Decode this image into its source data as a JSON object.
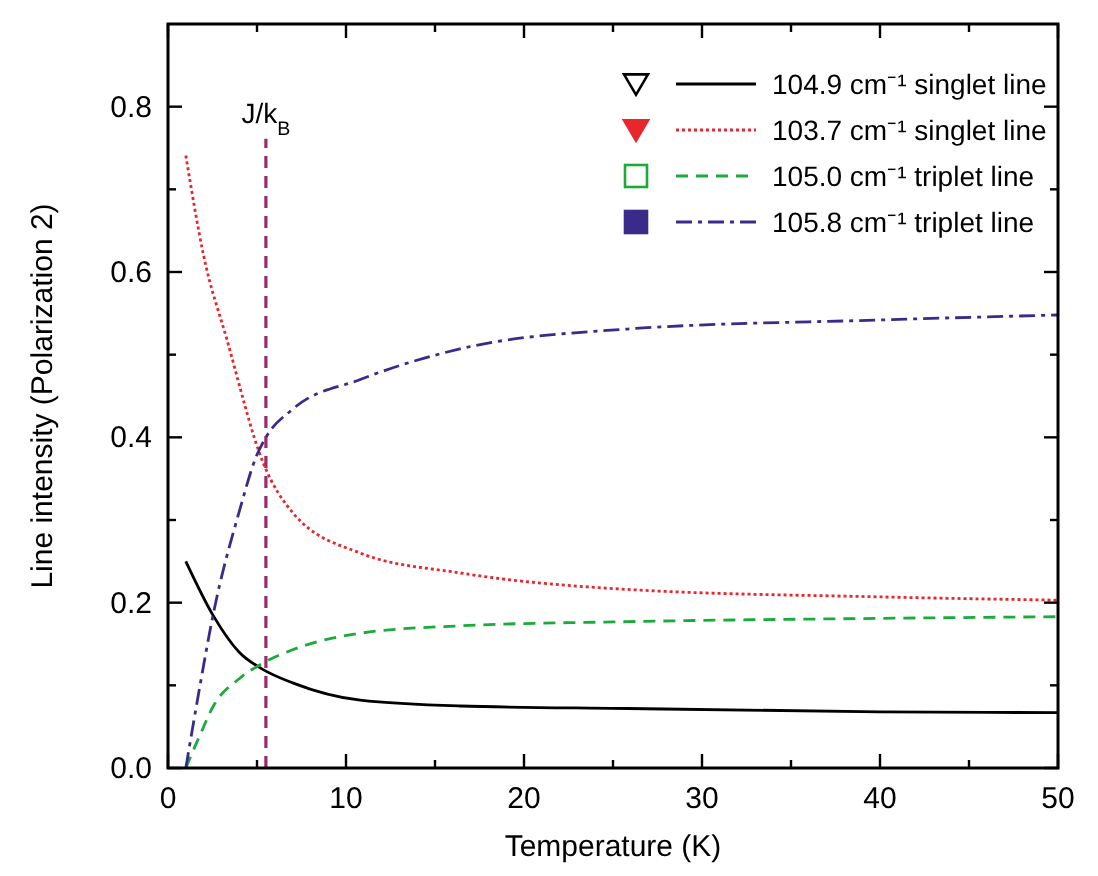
{
  "chart_data": {
    "type": "line",
    "xlabel": "Temperature (K)",
    "ylabel": "Line intensity (Polarization 2)",
    "xlim": [
      0,
      50
    ],
    "ylim": [
      0,
      0.9
    ],
    "xticks": [
      0,
      {
        "value": 5,
        "label": null
      },
      10,
      {
        "value": 15,
        "label": null
      },
      20,
      {
        "value": 25,
        "label": null
      },
      30,
      {
        "value": 35,
        "label": null
      },
      40,
      {
        "value": 45,
        "label": null
      },
      50
    ],
    "yticks": [
      "0.0",
      {
        "value": 0.1,
        "label": null
      },
      0.2,
      {
        "value": 0.3,
        "label": null
      },
      0.4,
      {
        "value": 0.5,
        "label": null
      },
      0.6,
      {
        "value": 0.7,
        "label": null
      },
      0.8
    ],
    "grid": false,
    "legend": "top right",
    "ref_lines": [
      {
        "axis": "x",
        "value": 5.5,
        "label": "J/k$_{B}$",
        "color": "#9b2a6a",
        "line_style": "dashed"
      }
    ],
    "series": [
      {
        "name": "104.9 cm⁻¹ singlet line",
        "color": "#000000",
        "line_style": "solid",
        "x": [
          1,
          2.55,
          4,
          5.35,
          7,
          10.8,
          16.4,
          25.8,
          40,
          50
        ],
        "values": [
          0.25,
          0.184,
          0.14,
          0.119,
          0.103,
          0.082,
          0.075,
          0.072,
          0.068,
          0.067
        ]
      },
      {
        "name": "103.7 cm⁻¹ singlet line",
        "color": "#e8262b",
        "line_style": "dotted",
        "x": [
          1,
          2,
          3.3,
          5.35,
          7,
          10.8,
          16.4,
          25.8,
          40,
          50
        ],
        "values": [
          0.741,
          0.62,
          0.519,
          0.369,
          0.309,
          0.26,
          0.236,
          0.216,
          0.207,
          0.203
        ]
      },
      {
        "name": "105.0 cm⁻¹ triplet line",
        "color": "#1aab3a",
        "line_style": "dashed",
        "x": [
          1,
          1.8,
          2.55,
          4,
          5.35,
          7,
          10.8,
          16.4,
          25.8,
          40,
          50
        ],
        "values": [
          0,
          0.04,
          0.075,
          0.108,
          0.127,
          0.143,
          0.163,
          0.172,
          0.177,
          0.181,
          0.183
        ]
      },
      {
        "name": "105.8 cm⁻¹ triplet line",
        "color": "#3a2a8a",
        "line_style": "dashdot",
        "x": [
          1,
          1.8,
          2.55,
          4,
          4.98,
          5.5,
          7,
          10.8,
          16.4,
          25.8,
          40,
          50
        ],
        "values": [
          0,
          0.1,
          0.187,
          0.31,
          0.378,
          0.4,
          0.434,
          0.47,
          0.507,
          0.531,
          0.542,
          0.548
        ]
      }
    ]
  }
}
